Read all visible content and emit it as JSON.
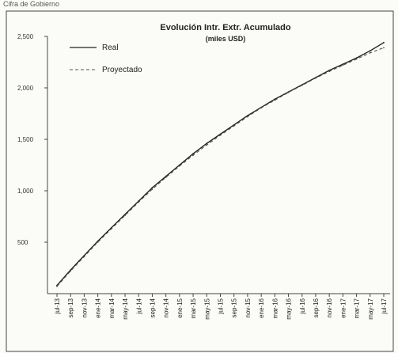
{
  "caption": "Cifra de Gobierno",
  "chart_data": {
    "type": "line",
    "title": "Evolución Intr. Extr. Acumulado",
    "subtitle": "(miles USD)",
    "xlabel": "",
    "ylabel": "",
    "ylim": [
      0,
      2500
    ],
    "yticks": [
      {
        "value": 2500,
        "label": "2,500"
      },
      {
        "value": 2000,
        "label": "2,000"
      },
      {
        "value": 1500,
        "label": "1,500"
      },
      {
        "value": 1000,
        "label": "1,000"
      },
      {
        "value": 500,
        "label": "500"
      }
    ],
    "grid": false,
    "legend_position": "top-left",
    "categories": [
      "jul-13",
      "sep-13",
      "nov-13",
      "ene-14",
      "mar-14",
      "may-14",
      "jul-14",
      "sep-14",
      "nov-14",
      "ene-15",
      "mar-15",
      "may-15",
      "jul-15",
      "sep-15",
      "nov-15",
      "ene-16",
      "mar-16",
      "may-16",
      "jul-16",
      "sep-16",
      "nov-16",
      "ene-17",
      "mar-17",
      "may-17",
      "jul-17"
    ],
    "series": [
      {
        "name": "Real",
        "style": "solid",
        "color": "#222222",
        "values": [
          80,
          230,
          370,
          510,
          640,
          770,
          900,
          1030,
          1140,
          1250,
          1360,
          1460,
          1550,
          1640,
          1730,
          1810,
          1890,
          1960,
          2030,
          2100,
          2170,
          2230,
          2290,
          2360,
          2440
        ]
      },
      {
        "name": "Proyectado",
        "style": "dashed",
        "color": "#555555",
        "values": [
          70,
          220,
          360,
          500,
          630,
          760,
          890,
          1015,
          1130,
          1240,
          1345,
          1445,
          1540,
          1630,
          1720,
          1805,
          1880,
          1955,
          2025,
          2095,
          2160,
          2220,
          2280,
          2340,
          2390
        ]
      }
    ]
  }
}
